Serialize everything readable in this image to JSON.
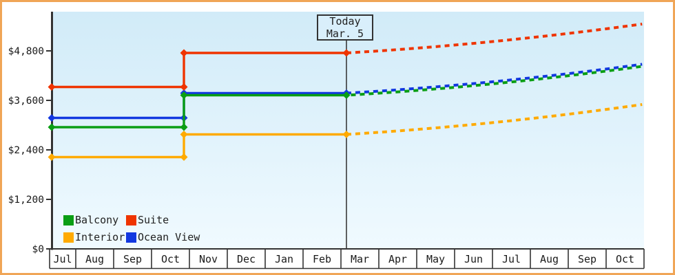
{
  "frame": {
    "border_color": "#f0a556",
    "background_color": "#ffffff"
  },
  "chart_data": {
    "type": "line",
    "title": "",
    "months": [
      "Jul",
      "Aug",
      "Sep",
      "Oct",
      "Nov",
      "Dec",
      "Jan",
      "Feb",
      "Mar",
      "Apr",
      "May",
      "Jun",
      "Jul",
      "Aug",
      "Sep",
      "Oct"
    ],
    "y_ticks": [
      {
        "label": "$0",
        "value": 0
      },
      {
        "label": "$1,200",
        "value": 1200
      },
      {
        "label": "$2,400",
        "value": 2400
      },
      {
        "label": "$3,600",
        "value": 3600
      },
      {
        "label": "$4,800",
        "value": 4800
      }
    ],
    "ylim": [
      0,
      5750
    ],
    "xlim_units": [
      0,
      16
    ],
    "grid": "off",
    "legend_position": "bottom-left",
    "today": {
      "line1": "Today",
      "line2": "Mar. 5",
      "x_unit": 8.145
    },
    "series": [
      {
        "name": "Interior",
        "color": "#ffaa00",
        "solid": [
          [
            0.08,
            2225
          ],
          [
            3.855,
            2225
          ],
          [
            3.855,
            2775
          ],
          [
            8.145,
            2775
          ]
        ],
        "projected_end": [
          15.95,
          3500
        ],
        "dash_offset": 0
      },
      {
        "name": "Ocean View",
        "color": "#1238e0",
        "solid": [
          [
            0.08,
            3175
          ],
          [
            3.855,
            3175
          ],
          [
            3.855,
            3775
          ],
          [
            8.145,
            3775
          ]
        ],
        "projected_end": [
          15.95,
          4475
        ],
        "dash_offset": 0
      },
      {
        "name": "Balcony",
        "color": "#0a9e14",
        "solid": [
          [
            0.08,
            2950
          ],
          [
            3.855,
            2950
          ],
          [
            3.855,
            3725
          ],
          [
            8.145,
            3725
          ]
        ],
        "projected_end": [
          15.95,
          4425
        ],
        "dash_offset": 6.5
      },
      {
        "name": "Suite",
        "color": "#ef3400",
        "solid": [
          [
            0.08,
            3925
          ],
          [
            3.855,
            3925
          ],
          [
            3.855,
            4750
          ],
          [
            8.145,
            4750
          ]
        ],
        "projected_end": [
          15.95,
          5450
        ],
        "dash_offset": 0
      }
    ],
    "legend": [
      {
        "label": "Balcony",
        "color": "#0a9e14"
      },
      {
        "label": "Suite",
        "color": "#ef3400"
      },
      {
        "label": "Interior",
        "color": "#ffaa00"
      },
      {
        "label": "Ocean View",
        "color": "#1238e0"
      }
    ],
    "colors": {
      "axis": "#333333",
      "tick_text": "#1a1a1a",
      "plot_bg_top": "#d1ebf8",
      "plot_bg_bottom": "#f0faff",
      "today_line": "#3a3a3a",
      "today_box_fill": "#d9effb"
    }
  }
}
